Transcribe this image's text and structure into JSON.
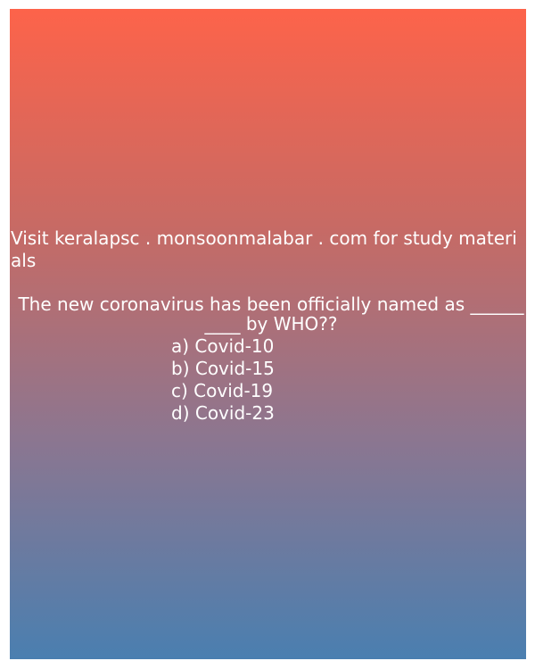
{
  "promo_text": "Visit keralapsc . monsoonmalabar . com for study materials",
  "question": {
    "text": "The new coronavirus has been officially named as __________ by WHO??",
    "options": [
      "a) Covid-10",
      "b) Covid-15",
      "c) Covid-19",
      "d) Covid-23"
    ]
  },
  "colors": {
    "gradient_top": "#fd634a",
    "gradient_bottom": "#4a7fb0",
    "text": "#ffffff"
  }
}
